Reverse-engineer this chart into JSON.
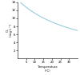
{
  "title": "",
  "xlabel": "Temperature\n(°C)",
  "ylabel": "O₂\n(mg L⁻¹)",
  "xlim": [
    0,
    35
  ],
  "ylim": [
    0,
    14
  ],
  "xticks": [
    5,
    10,
    15,
    20,
    25,
    30
  ],
  "yticks": [
    2,
    4,
    6,
    8,
    10,
    12,
    14
  ],
  "line_color": "#99ccdd",
  "line_width": 0.8,
  "background_color": "#ffffff",
  "curve_temps": [
    0,
    1,
    2,
    3,
    4,
    5,
    6,
    7,
    8,
    9,
    10,
    11,
    12,
    13,
    14,
    15,
    16,
    17,
    18,
    19,
    20,
    21,
    22,
    23,
    24,
    25,
    26,
    27,
    28,
    29,
    30,
    31,
    32,
    33,
    34,
    35
  ],
  "curve_do": [
    14.62,
    14.22,
    13.83,
    13.46,
    13.11,
    12.77,
    12.45,
    12.14,
    11.84,
    11.56,
    11.29,
    11.03,
    10.78,
    10.54,
    10.31,
    10.08,
    9.87,
    9.67,
    9.47,
    9.28,
    9.09,
    8.91,
    8.74,
    8.58,
    8.42,
    8.26,
    8.11,
    7.97,
    7.83,
    7.69,
    7.56,
    7.43,
    7.31,
    7.18,
    7.06,
    6.95
  ]
}
